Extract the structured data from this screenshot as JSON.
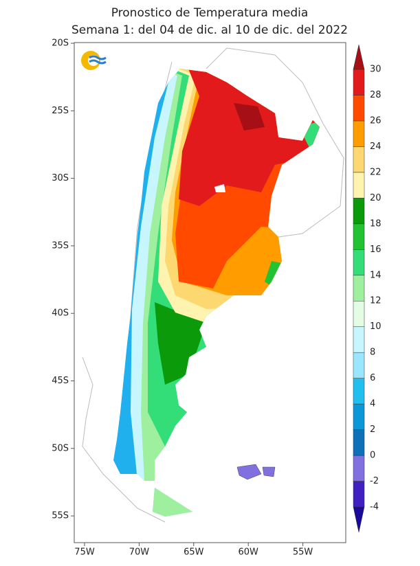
{
  "title": "Pronostico de Temperatura media",
  "subtitle": "Semana 1: del 04 de dic. al 10 de dic. del 2022",
  "lat_labels": [
    "20S",
    "25S",
    "30S",
    "35S",
    "40S",
    "45S",
    "50S",
    "55S"
  ],
  "lon_labels": [
    "75W",
    "70W",
    "65W",
    "60W",
    "55W"
  ],
  "colorbar": {
    "ticks": [
      -4,
      -2,
      0,
      2,
      4,
      6,
      8,
      10,
      12,
      14,
      16,
      18,
      20,
      22,
      24,
      26,
      28,
      30
    ],
    "colors": [
      "#1a0a9a",
      "#4020c0",
      "#8070e0",
      "#0e70b8",
      "#0a98d8",
      "#20bff0",
      "#9be6ff",
      "#c8f6ff",
      "#e4fbe4",
      "#9ef09e",
      "#33dd77",
      "#22c232",
      "#0a9a0a",
      "#fff3b0",
      "#fdd870",
      "#ff9c00",
      "#ff4a00",
      "#e31a1c",
      "#a50f15"
    ]
  }
}
